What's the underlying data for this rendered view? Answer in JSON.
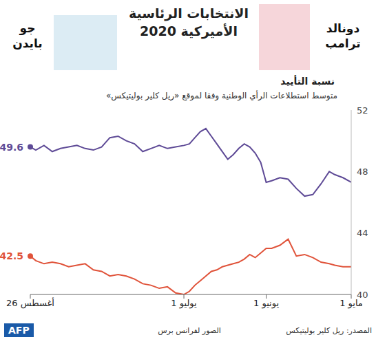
{
  "chart_data": {
    "type": "line",
    "title": "الانتخابات الرئاسية الأميركية 2020",
    "subtitle": "نسبة التأييد",
    "description": "متوسط استطلاعات الرأي الوطنية وفقا لموقع «ريل كلير بوليتيكس»",
    "x": [
      0,
      3,
      6,
      8,
      11,
      14,
      17,
      20,
      23,
      26,
      29,
      31,
      33,
      35,
      37,
      39,
      41,
      43,
      45,
      47,
      49,
      51,
      53,
      55,
      57,
      59,
      61,
      64,
      67,
      70,
      73,
      76,
      79,
      82,
      85,
      88,
      91,
      94,
      97,
      100,
      103,
      106,
      109,
      112,
      115,
      117
    ],
    "xlim": [
      0,
      117
    ],
    "xticks": [
      {
        "value": 0,
        "label": "1 مايو"
      },
      {
        "value": 31,
        "label": "1 يونيو"
      },
      {
        "value": 61,
        "label": "1 يوليو"
      },
      {
        "value": 117,
        "label": "26 أغسطس"
      }
    ],
    "ylim": [
      40,
      52
    ],
    "yticks": [
      40,
      44,
      48,
      52
    ],
    "grid": false,
    "series": [
      {
        "name": "جو بايدن",
        "color": "#5e4a96",
        "values": [
          47.3,
          47.6,
          47.8,
          48.0,
          47.2,
          46.5,
          46.4,
          46.9,
          47.5,
          47.6,
          47.4,
          47.3,
          48.6,
          49.2,
          49.6,
          49.8,
          49.5,
          49.1,
          48.8,
          49.3,
          49.8,
          50.3,
          50.8,
          50.6,
          50.2,
          49.8,
          49.7,
          49.6,
          49.5,
          49.7,
          49.5,
          49.3,
          49.8,
          50.0,
          50.3,
          50.2,
          49.6,
          49.4,
          49.5,
          49.7,
          49.6,
          49.5,
          49.3,
          49.7,
          49.4,
          49.6
        ]
      },
      {
        "name": "دونالد ترامب",
        "color": "#e0533a",
        "values": [
          41.8,
          41.8,
          41.9,
          42.0,
          42.1,
          42.4,
          42.6,
          42.5,
          43.6,
          43.2,
          43.0,
          43.0,
          42.7,
          42.4,
          42.6,
          42.3,
          42.1,
          42.0,
          41.9,
          41.8,
          41.6,
          41.5,
          41.2,
          40.9,
          40.6,
          40.2,
          40.0,
          40.1,
          40.5,
          40.4,
          40.6,
          40.7,
          41.0,
          41.2,
          41.3,
          41.2,
          41.5,
          41.6,
          42.0,
          41.9,
          41.8,
          42.0,
          42.1,
          42.0,
          42.2,
          42.5
        ]
      }
    ],
    "annotations": [
      {
        "text": "49.6",
        "x": 117,
        "y": 49.6,
        "series": "جو بايدن",
        "marker": "circle"
      },
      {
        "text": "42.5",
        "x": 117,
        "y": 42.5,
        "series": "دونالد ترامب",
        "marker": "circle"
      }
    ],
    "source": "المصدر: ريل كلير بوليتيكس",
    "credit": "الصور لفرانس برس",
    "logo": "AFP"
  }
}
